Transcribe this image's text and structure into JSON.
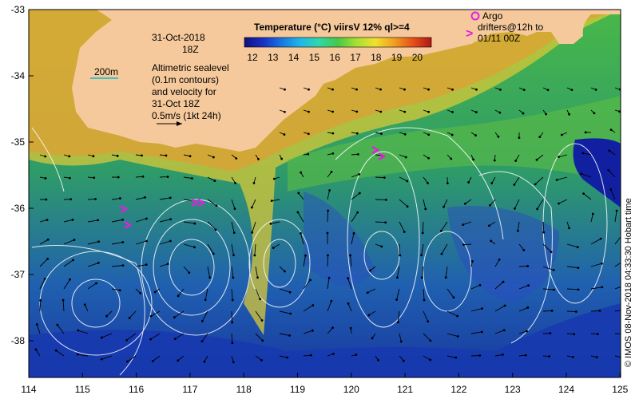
{
  "map": {
    "date_line1": "31-Oct-2018",
    "date_line2": "18Z",
    "scale_label": "200m",
    "info_lines": [
      "Altimetric sealevel",
      "(0.1m contours)",
      "and velocity for",
      "31-Oct 18Z",
      "0.5m/s (1kt 24h)"
    ],
    "credit": "© IMOS 08-Nov-2018 04:33:30 Hobart time",
    "x_ticks": [
      "114",
      "115",
      "116",
      "117",
      "118",
      "119",
      "120",
      "121",
      "122",
      "123",
      "124",
      "125"
    ],
    "y_ticks": [
      "-33",
      "-34",
      "-35",
      "-36",
      "-37",
      "-38"
    ]
  },
  "colorbar": {
    "title": "Temperature (°C) viirsV 12% ql>=4",
    "ticks": [
      "12",
      "13",
      "14",
      "15",
      "16",
      "17",
      "18",
      "19",
      "20"
    ],
    "colors": [
      "#10107a",
      "#1830c8",
      "#1878e0",
      "#20b8e8",
      "#30d8a8",
      "#48c848",
      "#a8e030",
      "#f0e030",
      "#f0a020",
      "#e85018",
      "#b01818"
    ]
  },
  "legend": {
    "argo": "Argo",
    "drifters_line1": "drifters@12h to",
    "drifters_line2": "01/11 00Z"
  },
  "colors": {
    "land": "#f5c99b",
    "marker": "#e020e0",
    "contour": "#ffffff",
    "scale_line": "#40c0c0"
  }
}
